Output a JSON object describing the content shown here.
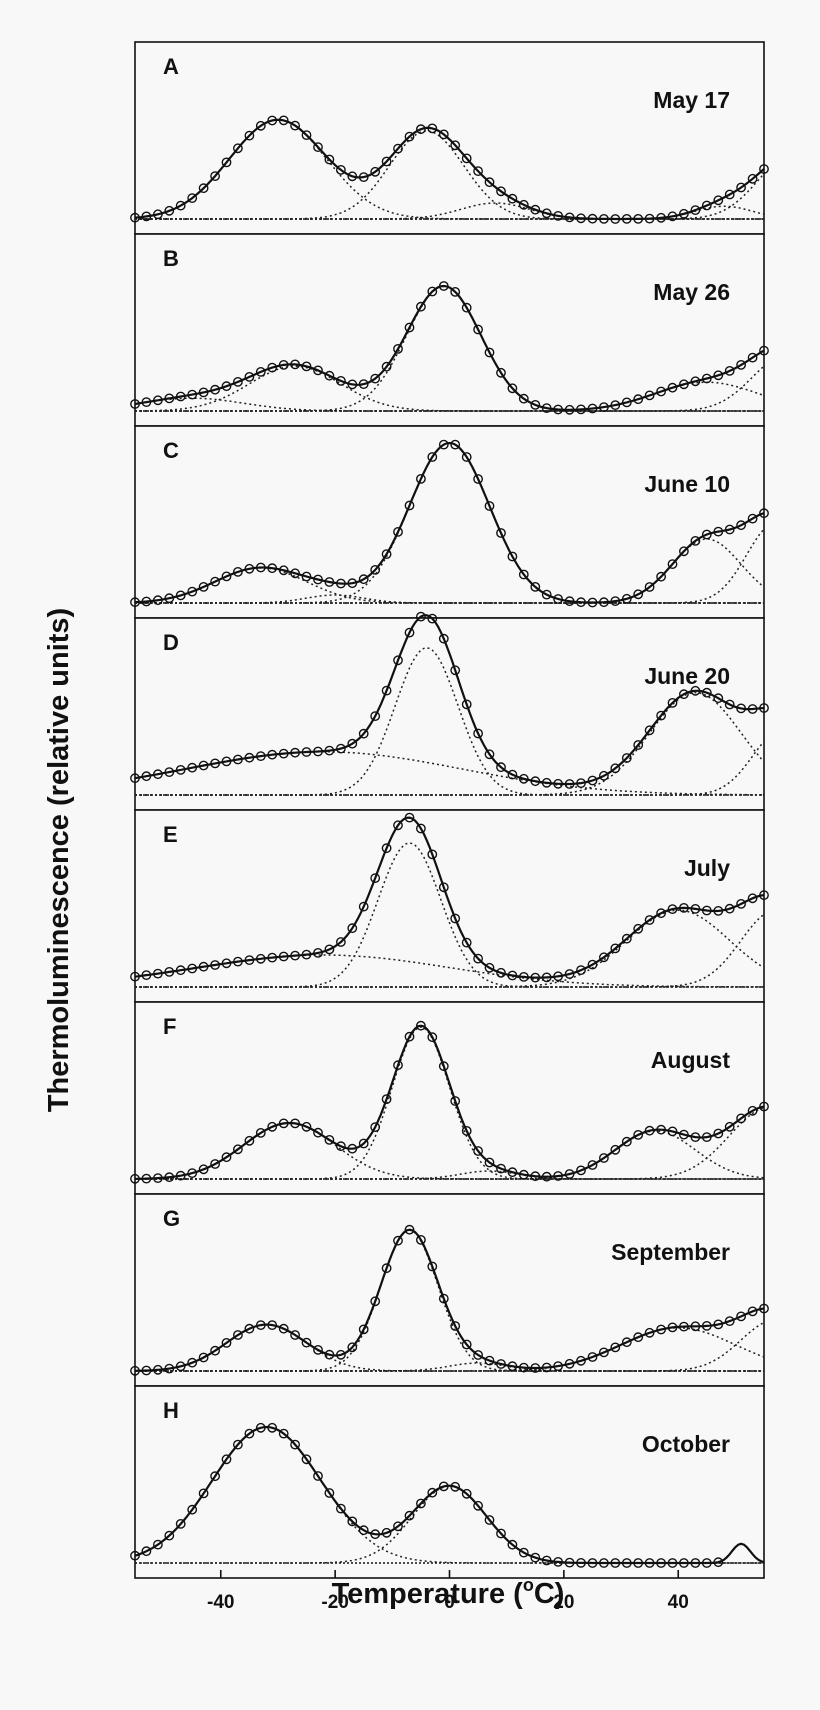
{
  "chart_data": {
    "type": "line",
    "ylabel": "Thermoluminescence (relative units)",
    "xlabel_main": "Temperature (",
    "xlabel_sup": "o",
    "xlabel_unit": "C)",
    "xlim": [
      -55,
      55
    ],
    "x_ticks": [
      -40,
      -20,
      0,
      20,
      40
    ],
    "x_tick_labels": [
      "-40",
      "-20",
      "0",
      "20",
      "40"
    ],
    "ylim": [
      0,
      1
    ],
    "grid": false,
    "panels": [
      {
        "letter": "A",
        "label": "May 17",
        "end_x": 55,
        "components": [
          {
            "center": -30,
            "width": 8.5,
            "amp": 0.62
          },
          {
            "center": -4,
            "width": 6.5,
            "amp": 0.55
          },
          {
            "center": 8,
            "width": 6,
            "amp": 0.1
          },
          {
            "center": 48,
            "width": 5,
            "amp": 0.08
          },
          {
            "center": 60,
            "width": 6,
            "amp": 0.4
          }
        ]
      },
      {
        "letter": "B",
        "label": "May 26",
        "end_x": 55,
        "components": [
          {
            "center": -45,
            "width": 9,
            "amp": 0.08
          },
          {
            "center": -27,
            "width": 8,
            "amp": 0.28
          },
          {
            "center": -1,
            "width": 6.5,
            "amp": 0.78
          },
          {
            "center": 45,
            "width": 9,
            "amp": 0.18
          },
          {
            "center": 59,
            "width": 6,
            "amp": 0.35
          }
        ]
      },
      {
        "letter": "C",
        "label": "June 10",
        "end_x": 55,
        "components": [
          {
            "center": -33,
            "width": 8,
            "amp": 0.22
          },
          {
            "center": -20,
            "width": 5,
            "amp": 0.05
          },
          {
            "center": 0,
            "width": 7,
            "amp": 1.0
          },
          {
            "center": 45,
            "width": 6,
            "amp": 0.4
          },
          {
            "center": 57,
            "width": 5,
            "amp": 0.5
          }
        ]
      },
      {
        "letter": "D",
        "label": "June 20",
        "end_x": 55,
        "components": [
          {
            "center": -22,
            "width": 24,
            "amp": 0.27
          },
          {
            "center": -4,
            "width": 5.5,
            "amp": 0.92
          },
          {
            "center": 43,
            "width": 8,
            "amp": 0.64
          },
          {
            "center": 58,
            "width": 5,
            "amp": 0.4
          }
        ]
      },
      {
        "letter": "E",
        "label": "July",
        "end_x": 55,
        "components": [
          {
            "center": -22,
            "width": 22,
            "amp": 0.2
          },
          {
            "center": -7,
            "width": 5.5,
            "amp": 0.9
          },
          {
            "center": 40,
            "width": 9,
            "amp": 0.48
          },
          {
            "center": 57,
            "width": 6,
            "amp": 0.48
          }
        ]
      },
      {
        "letter": "F",
        "label": "August",
        "end_x": 55,
        "components": [
          {
            "center": -28,
            "width": 8,
            "amp": 0.35
          },
          {
            "center": -5,
            "width": 5,
            "amp": 0.95
          },
          {
            "center": 7,
            "width": 5,
            "amp": 0.05
          },
          {
            "center": 36,
            "width": 7,
            "amp": 0.3
          },
          {
            "center": 56,
            "width": 7,
            "amp": 0.45
          }
        ]
      },
      {
        "letter": "G",
        "label": "September",
        "end_x": 55,
        "components": [
          {
            "center": -32,
            "width": 7,
            "amp": 0.29
          },
          {
            "center": -7,
            "width": 5,
            "amp": 0.88
          },
          {
            "center": 5,
            "width": 5,
            "amp": 0.05
          },
          {
            "center": 40,
            "width": 10,
            "amp": 0.27
          },
          {
            "center": 57,
            "width": 6,
            "amp": 0.32
          }
        ]
      },
      {
        "letter": "H",
        "label": "October",
        "end_x": 47,
        "components": [
          {
            "center": -32,
            "width": 9.5,
            "amp": 0.85
          },
          {
            "center": 0,
            "width": 6.5,
            "amp": 0.48
          }
        ],
        "spike": {
          "center": 51,
          "width": 1.6,
          "amp": 0.12
        }
      }
    ]
  }
}
